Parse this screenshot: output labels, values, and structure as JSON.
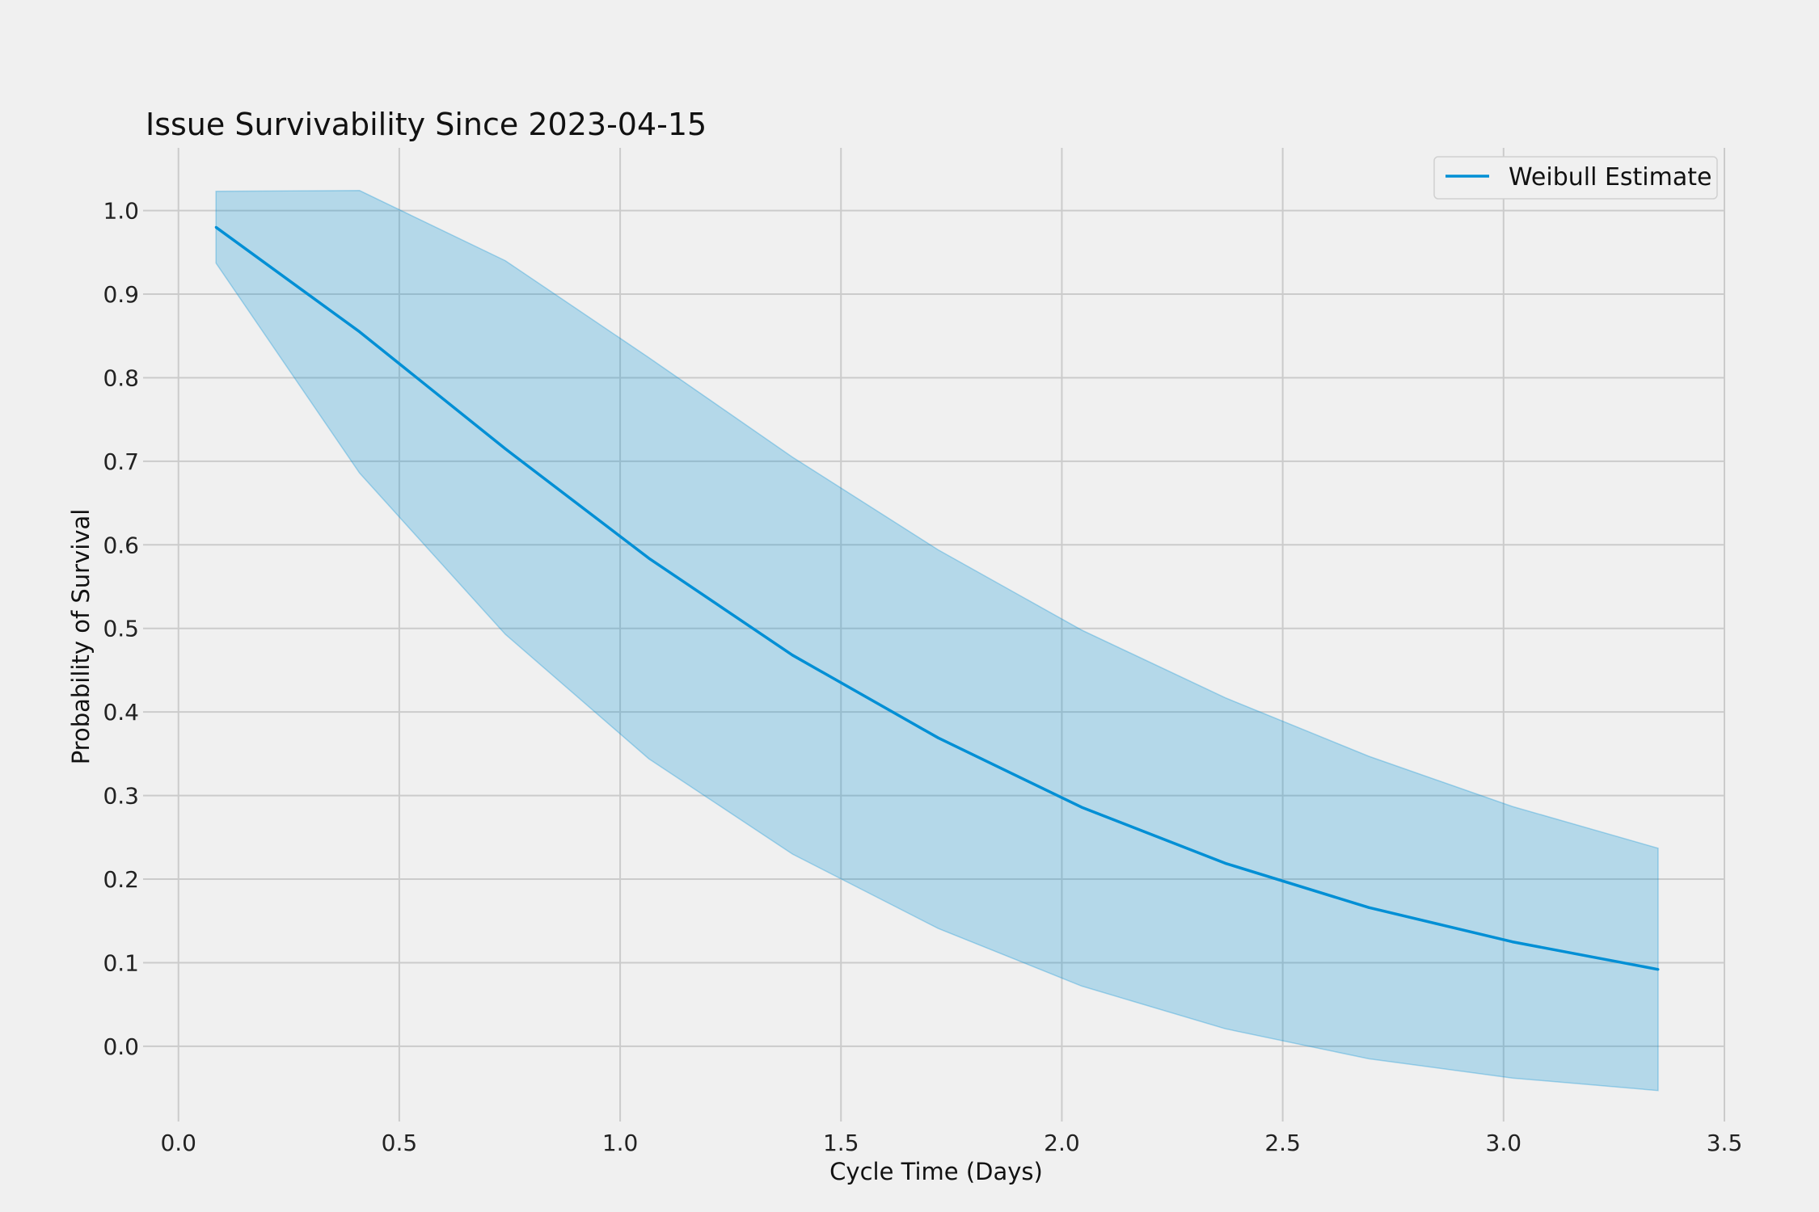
{
  "colors": {
    "background": "#f0f0f0",
    "grid": "#cbcbcb",
    "line": "#008fd5",
    "band": "#008fd5"
  },
  "chart_data": {
    "type": "line",
    "title": "Issue Survivability Since 2023-04-15",
    "xlabel": "Cycle Time (Days)",
    "ylabel": "Probability of Survival",
    "xlim": [
      -0.08,
      3.5
    ],
    "ylim": [
      -0.09,
      1.075
    ],
    "xticks": [
      0.0,
      0.5,
      1.0,
      1.5,
      2.0,
      2.5,
      3.0,
      3.5
    ],
    "xtick_labels": [
      "0.0",
      "0.5",
      "1.0",
      "1.5",
      "2.0",
      "2.5",
      "3.0",
      "3.5"
    ],
    "yticks": [
      0.0,
      0.1,
      0.2,
      0.3,
      0.4,
      0.5,
      0.6,
      0.7,
      0.8,
      0.9,
      1.0
    ],
    "ytick_labels": [
      "0.0",
      "0.1",
      "0.2",
      "0.3",
      "0.4",
      "0.5",
      "0.6",
      "0.7",
      "0.8",
      "0.9",
      "1.0"
    ],
    "grid": true,
    "legend": {
      "position": "top-right",
      "entries": [
        "Weibull Estimate"
      ]
    },
    "x": [
      0.085,
      0.41,
      0.74,
      1.065,
      1.39,
      1.72,
      2.045,
      2.37,
      2.695,
      3.02,
      3.35
    ],
    "series": [
      {
        "name": "Weibull Estimate",
        "values": [
          0.98,
          0.855,
          0.715,
          0.584,
          0.468,
          0.369,
          0.286,
          0.219,
          0.166,
          0.125,
          0.092
        ],
        "lower": [
          0.937,
          0.686,
          0.493,
          0.344,
          0.23,
          0.141,
          0.072,
          0.021,
          -0.015,
          -0.038,
          -0.053
        ],
        "upper": [
          1.023,
          1.024,
          0.94,
          0.824,
          0.705,
          0.594,
          0.498,
          0.417,
          0.347,
          0.287,
          0.237
        ]
      }
    ]
  }
}
